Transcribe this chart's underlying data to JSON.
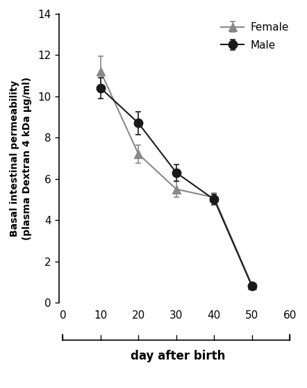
{
  "male_x": [
    10,
    20,
    30,
    40,
    50
  ],
  "male_y": [
    10.4,
    8.7,
    6.3,
    5.0,
    0.8
  ],
  "male_yerr": [
    0.5,
    0.55,
    0.4,
    0.25,
    0.1
  ],
  "female_x": [
    10,
    20,
    30,
    40,
    50
  ],
  "female_y": [
    11.2,
    7.2,
    5.5,
    5.1,
    0.85
  ],
  "female_yerr": [
    0.75,
    0.45,
    0.4,
    0.2,
    0.1
  ],
  "male_color": "#1a1a1a",
  "female_color": "#888888",
  "ylabel_line1": "Basal intestinal permeability",
  "ylabel_line2": "(plasma Dextran 4 kDa µg/ml)",
  "xlabel": "day after birth",
  "ylim": [
    0,
    14
  ],
  "xlim": [
    -1,
    62
  ],
  "yticks": [
    0,
    2,
    4,
    6,
    8,
    10,
    12,
    14
  ],
  "xticks": [
    0,
    10,
    20,
    30,
    40,
    50,
    60
  ],
  "legend_male": "Male",
  "legend_female": "Female",
  "fig_width": 4.42,
  "fig_height": 5.59,
  "dpi": 100
}
